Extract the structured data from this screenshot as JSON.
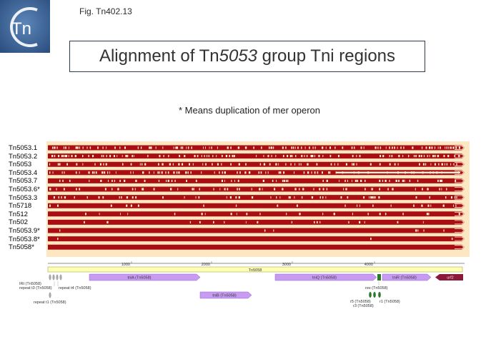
{
  "figure_label": "Fig. Tn402.13",
  "logo_text": "Tn",
  "title": {
    "prefix": "Alignment of Tn",
    "italic": "5053",
    "suffix": " group Tni regions"
  },
  "note": "* Means duplication of mer operon",
  "strains": [
    "Tn5053.1",
    "Tn5053.2",
    "Tn5053",
    "Tn5053.4",
    "Tn5053.7",
    "Tn5053.6*",
    "Tn5053.3",
    "Tn5718",
    "Tn512",
    "Tn502",
    "Tn5053.9*",
    "Tn5053.8*",
    "Tn5058*"
  ],
  "ruler": {
    "ticks": [
      "1000",
      "2000",
      "3000",
      "4000"
    ]
  },
  "reference_name": "Tn5058",
  "features": {
    "tnia": "tniA (Tn5058)",
    "tnib": "tniB (Tn5058)",
    "tniq": "tniQ (Tn5058)",
    "tnir": "tniR (Tn5058)",
    "urf2": "urf2",
    "irt": "IRt (Tn5058)",
    "repeat_t3": "repeat t3 (Tn5058)",
    "repeat_t4": "repeat t4 (Tn5058)",
    "repeat_t1": "repeat t1 (Tn5058)",
    "res": "res (Tn5058)",
    "r5": "r5 (Tn5058)",
    "r1": "r1 (Tn5058)",
    "r3": "r3 (Tn5058)"
  },
  "colors": {
    "match": "#a80e12",
    "mismatch": "#fff0d8",
    "panel": "#fde7c3",
    "ruler_bar": "#ffffb3",
    "cds": "#c79bf2",
    "urf2": "#8b1a3a",
    "repeat": "#a8a8a8",
    "res_feature": "#2a7a2a"
  }
}
